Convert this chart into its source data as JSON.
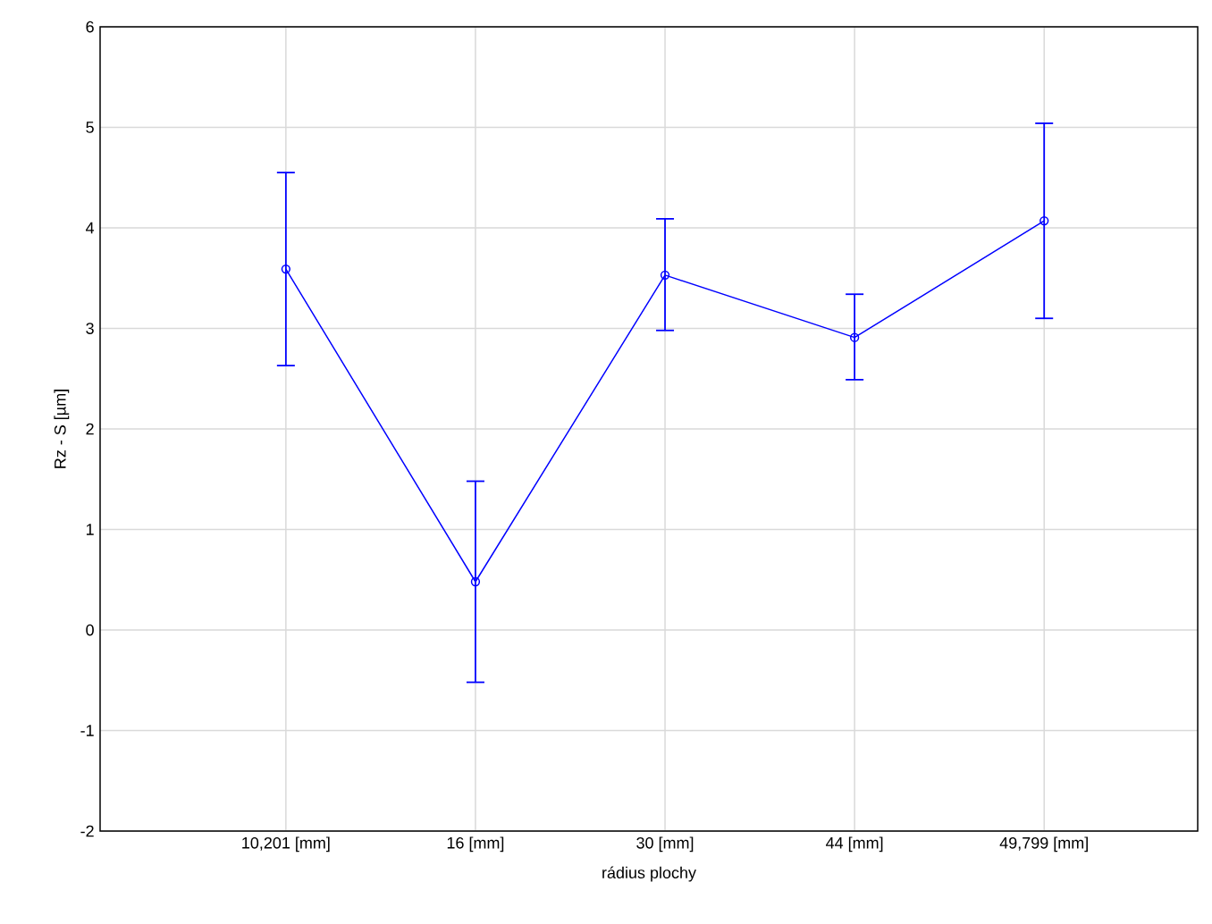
{
  "chart_data": {
    "type": "line",
    "xlabel": "rádius plochy",
    "ylabel": "Rz - S [µm]",
    "categories": [
      "10,201 [mm]",
      "16 [mm]",
      "30 [mm]",
      "44 [mm]",
      "49,799 [mm]"
    ],
    "series": [
      {
        "color": "#0000ff",
        "values": [
          3.59,
          0.48,
          3.53,
          2.91,
          4.07
        ],
        "errors": [
          [
            2.63,
            4.55
          ],
          [
            -0.52,
            1.48
          ],
          [
            2.98,
            4.09
          ],
          [
            2.49,
            3.34
          ],
          [
            3.1,
            5.04
          ]
        ]
      }
    ],
    "ylim": [
      -2,
      6
    ],
    "yticks": [
      -2,
      -1,
      0,
      1,
      2,
      3,
      4,
      5,
      6
    ],
    "grid": true,
    "marker": "circle",
    "line_style": "solid"
  }
}
